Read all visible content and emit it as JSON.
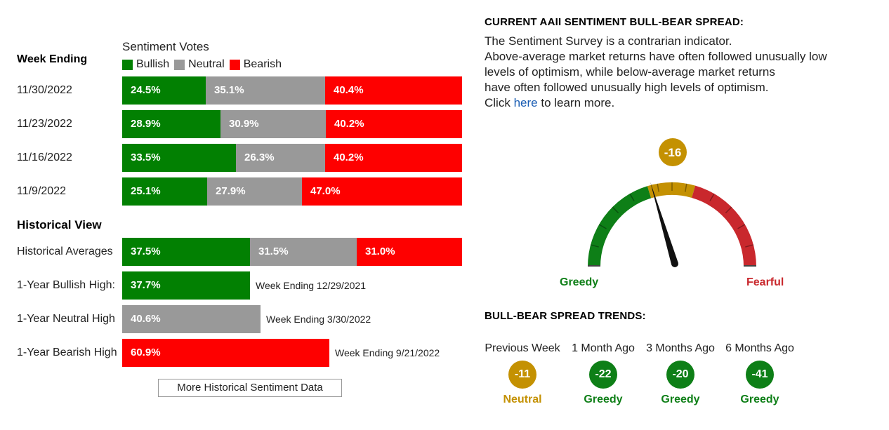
{
  "left": {
    "week_ending_header": "Week Ending",
    "sentiment_votes_title": "Sentiment Votes",
    "legend": [
      "Bullish",
      "Neutral",
      "Bearish"
    ],
    "weeks": [
      {
        "date": "11/30/2022",
        "bullish": "24.5%",
        "neutral": "35.1%",
        "bearish": "40.4%",
        "b": 24.5,
        "n": 35.1,
        "r": 40.4
      },
      {
        "date": "11/23/2022",
        "bullish": "28.9%",
        "neutral": "30.9%",
        "bearish": "40.2%",
        "b": 28.9,
        "n": 30.9,
        "r": 40.2
      },
      {
        "date": "11/16/2022",
        "bullish": "33.5%",
        "neutral": "26.3%",
        "bearish": "40.2%",
        "b": 33.5,
        "n": 26.3,
        "r": 40.2
      },
      {
        "date": "11/9/2022",
        "bullish": "25.1%",
        "neutral": "27.9%",
        "bearish": "47.0%",
        "b": 25.1,
        "n": 27.9,
        "r": 47.0
      }
    ],
    "historical_view_header": "Historical View",
    "historical_averages": {
      "label": "Historical Averages",
      "bullish": "37.5%",
      "neutral": "31.5%",
      "bearish": "31.0%",
      "b": 37.5,
      "n": 31.5,
      "r": 31.0
    },
    "highs": [
      {
        "label": "1-Year Bullish High:",
        "value": "37.7%",
        "pct": 37.7,
        "type": "bull",
        "note": "Week Ending 12/29/2021"
      },
      {
        "label": "1-Year Neutral High",
        "value": "40.6%",
        "pct": 40.6,
        "type": "neut",
        "note": "Week Ending 3/30/2022"
      },
      {
        "label": "1-Year Bearish High",
        "value": "60.9%",
        "pct": 60.9,
        "type": "bear",
        "note": "Week Ending 9/21/2022"
      }
    ],
    "more_button": "More Historical Sentiment Data"
  },
  "right": {
    "title": "CURRENT AAII SENTIMENT BULL-BEAR SPREAD:",
    "desc_lines": [
      "The Sentiment Survey is a contrarian indicator.",
      "Above-average market returns have often followed unusually low",
      "levels of optimism, while below-average market returns",
      "have often followed unusually high levels of optimism."
    ],
    "click_prefix": "Click",
    "click_link": "here",
    "click_suffix": "to learn more.",
    "gauge": {
      "value": "-16",
      "value_num": -16,
      "left_label": "Greedy",
      "right_label": "Fearful"
    },
    "trends_title": "BULL-BEAR SPREAD TRENDS:",
    "trends": [
      {
        "label": "Previous Week",
        "value": "-11",
        "status": "Neutral",
        "color": "#c49102"
      },
      {
        "label": "1 Month Ago",
        "value": "-22",
        "status": "Greedy",
        "color": "#0e7f17"
      },
      {
        "label": "3 Months Ago",
        "value": "-20",
        "status": "Greedy",
        "color": "#0e7f17"
      },
      {
        "label": "6 Months Ago",
        "value": "-41",
        "status": "Greedy",
        "color": "#0e7f17"
      }
    ]
  },
  "colors": {
    "bullish": "#028002",
    "neutral": "#999999",
    "bearish": "#fe0000",
    "greedy": "#0e7f17",
    "neutral_gold": "#c49102",
    "fearful": "#c9282d",
    "link": "#1a5db3"
  }
}
